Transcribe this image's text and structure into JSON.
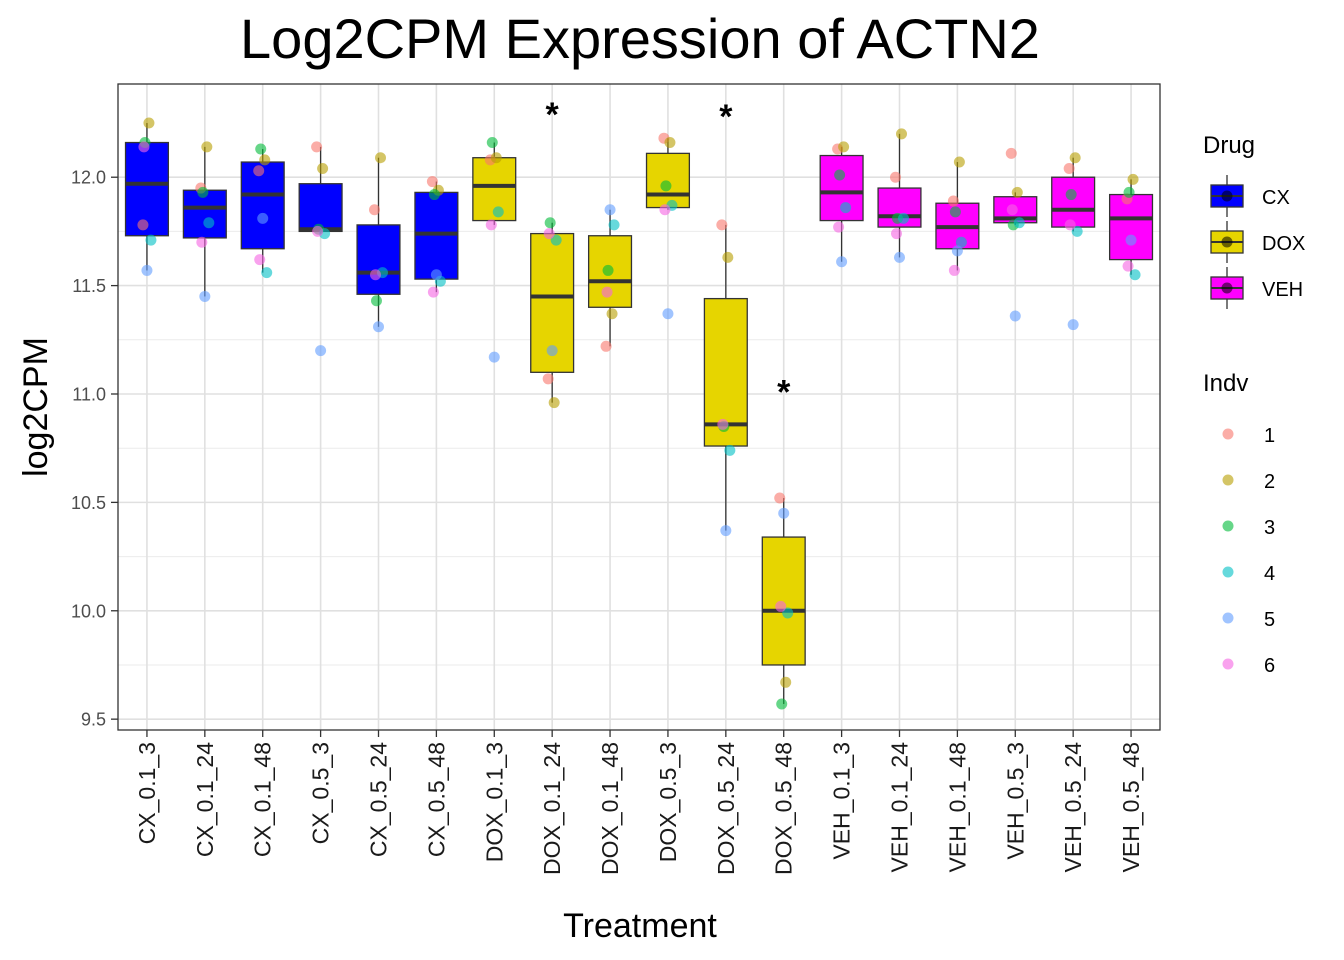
{
  "chart_data": {
    "type": "box",
    "title": "Log2CPM Expression of ACTN2",
    "xlabel": "Treatment",
    "ylabel": "log2CPM",
    "ylim": [
      9.45,
      12.43
    ],
    "yticks": [
      9.5,
      10.0,
      10.5,
      11.0,
      11.5,
      12.0
    ],
    "ytick_labels": [
      "9.5",
      "10.0",
      "10.5",
      "11.0",
      "11.5",
      "12.0"
    ],
    "categories": [
      "CX_0.1_3",
      "CX_0.1_24",
      "CX_0.1_48",
      "CX_0.5_3",
      "CX_0.5_24",
      "CX_0.5_48",
      "DOX_0.1_3",
      "DOX_0.1_24",
      "DOX_0.1_48",
      "DOX_0.5_3",
      "DOX_0.5_24",
      "DOX_0.5_48",
      "VEH_0.1_3",
      "VEH_0.1_24",
      "VEH_0.1_48",
      "VEH_0.5_3",
      "VEH_0.5_24",
      "VEH_0.5_48"
    ],
    "drug": [
      "CX",
      "CX",
      "CX",
      "CX",
      "CX",
      "CX",
      "DOX",
      "DOX",
      "DOX",
      "DOX",
      "DOX",
      "DOX",
      "VEH",
      "VEH",
      "VEH",
      "VEH",
      "VEH",
      "VEH"
    ],
    "boxes": [
      {
        "q1": 11.73,
        "median": 11.97,
        "q3": 12.16,
        "wlow": 11.57,
        "whigh": 12.25
      },
      {
        "q1": 11.72,
        "median": 11.86,
        "q3": 11.94,
        "wlow": 11.45,
        "whigh": 12.14
      },
      {
        "q1": 11.67,
        "median": 11.92,
        "q3": 12.07,
        "wlow": 11.56,
        "whigh": 12.13
      },
      {
        "q1": 11.75,
        "median": 11.76,
        "q3": 11.97,
        "wlow": 11.74,
        "whigh": 12.14
      },
      {
        "q1": 11.46,
        "median": 11.56,
        "q3": 11.78,
        "wlow": 11.31,
        "whigh": 12.09
      },
      {
        "q1": 11.53,
        "median": 11.74,
        "q3": 11.93,
        "wlow": 11.47,
        "whigh": 11.98
      },
      {
        "q1": 11.8,
        "median": 11.96,
        "q3": 12.09,
        "wlow": 11.78,
        "whigh": 12.16
      },
      {
        "q1": 11.1,
        "median": 11.45,
        "q3": 11.74,
        "wlow": 10.96,
        "whigh": 11.79
      },
      {
        "q1": 11.4,
        "median": 11.52,
        "q3": 11.73,
        "wlow": 11.22,
        "whigh": 11.85
      },
      {
        "q1": 11.86,
        "median": 11.92,
        "q3": 12.11,
        "wlow": 11.85,
        "whigh": 12.18
      },
      {
        "q1": 10.76,
        "median": 10.86,
        "q3": 11.44,
        "wlow": 10.37,
        "whigh": 11.78
      },
      {
        "q1": 9.75,
        "median": 10.0,
        "q3": 10.34,
        "wlow": 9.57,
        "whigh": 10.52
      },
      {
        "q1": 11.8,
        "median": 11.93,
        "q3": 12.1,
        "wlow": 11.61,
        "whigh": 12.14
      },
      {
        "q1": 11.77,
        "median": 11.82,
        "q3": 11.95,
        "wlow": 11.63,
        "whigh": 12.2
      },
      {
        "q1": 11.67,
        "median": 11.77,
        "q3": 11.88,
        "wlow": 11.57,
        "whigh": 12.07
      },
      {
        "q1": 11.79,
        "median": 11.81,
        "q3": 11.91,
        "wlow": 11.78,
        "whigh": 11.93
      },
      {
        "q1": 11.77,
        "median": 11.85,
        "q3": 12.0,
        "wlow": 11.75,
        "whigh": 12.09
      },
      {
        "q1": 11.62,
        "median": 11.81,
        "q3": 11.92,
        "wlow": 11.55,
        "whigh": 11.99
      }
    ],
    "points": [
      [
        {
          "indv": 1,
          "y": 11.78
        },
        {
          "indv": 2,
          "y": 12.25
        },
        {
          "indv": 3,
          "y": 12.16
        },
        {
          "indv": 4,
          "y": 11.71
        },
        {
          "indv": 5,
          "y": 11.57
        },
        {
          "indv": 6,
          "y": 12.14
        }
      ],
      [
        {
          "indv": 1,
          "y": 11.95
        },
        {
          "indv": 2,
          "y": 12.14
        },
        {
          "indv": 3,
          "y": 11.93
        },
        {
          "indv": 4,
          "y": 11.79
        },
        {
          "indv": 5,
          "y": 11.45
        },
        {
          "indv": 6,
          "y": 11.7
        }
      ],
      [
        {
          "indv": 1,
          "y": 12.03
        },
        {
          "indv": 2,
          "y": 12.08
        },
        {
          "indv": 3,
          "y": 12.13
        },
        {
          "indv": 4,
          "y": 11.56
        },
        {
          "indv": 5,
          "y": 11.81
        },
        {
          "indv": 6,
          "y": 11.62
        }
      ],
      [
        {
          "indv": 1,
          "y": 12.14
        },
        {
          "indv": 2,
          "y": 12.04
        },
        {
          "indv": 3,
          "y": 11.76
        },
        {
          "indv": 4,
          "y": 11.74
        },
        {
          "indv": 5,
          "y": 11.2
        },
        {
          "indv": 6,
          "y": 11.75
        }
      ],
      [
        {
          "indv": 1,
          "y": 11.85
        },
        {
          "indv": 2,
          "y": 12.09
        },
        {
          "indv": 3,
          "y": 11.43
        },
        {
          "indv": 4,
          "y": 11.56
        },
        {
          "indv": 5,
          "y": 11.31
        },
        {
          "indv": 6,
          "y": 11.55
        }
      ],
      [
        {
          "indv": 1,
          "y": 11.98
        },
        {
          "indv": 2,
          "y": 11.94
        },
        {
          "indv": 3,
          "y": 11.92
        },
        {
          "indv": 4,
          "y": 11.52
        },
        {
          "indv": 5,
          "y": 11.55
        },
        {
          "indv": 6,
          "y": 11.47
        }
      ],
      [
        {
          "indv": 1,
          "y": 12.08
        },
        {
          "indv": 2,
          "y": 12.09
        },
        {
          "indv": 3,
          "y": 12.16
        },
        {
          "indv": 4,
          "y": 11.84
        },
        {
          "indv": 5,
          "y": 11.17
        },
        {
          "indv": 6,
          "y": 11.78
        }
      ],
      [
        {
          "indv": 1,
          "y": 11.07
        },
        {
          "indv": 2,
          "y": 10.96
        },
        {
          "indv": 3,
          "y": 11.79
        },
        {
          "indv": 4,
          "y": 11.71
        },
        {
          "indv": 5,
          "y": 11.2
        },
        {
          "indv": 6,
          "y": 11.74
        }
      ],
      [
        {
          "indv": 1,
          "y": 11.22
        },
        {
          "indv": 2,
          "y": 11.37
        },
        {
          "indv": 3,
          "y": 11.57
        },
        {
          "indv": 4,
          "y": 11.78
        },
        {
          "indv": 5,
          "y": 11.85
        },
        {
          "indv": 6,
          "y": 11.47
        }
      ],
      [
        {
          "indv": 1,
          "y": 12.18
        },
        {
          "indv": 2,
          "y": 12.16
        },
        {
          "indv": 3,
          "y": 11.96
        },
        {
          "indv": 4,
          "y": 11.87
        },
        {
          "indv": 5,
          "y": 11.37
        },
        {
          "indv": 6,
          "y": 11.85
        }
      ],
      [
        {
          "indv": 1,
          "y": 11.78
        },
        {
          "indv": 2,
          "y": 11.63
        },
        {
          "indv": 3,
          "y": 10.85
        },
        {
          "indv": 4,
          "y": 10.74
        },
        {
          "indv": 5,
          "y": 10.37
        },
        {
          "indv": 6,
          "y": 10.86
        }
      ],
      [
        {
          "indv": 1,
          "y": 10.52
        },
        {
          "indv": 2,
          "y": 9.67
        },
        {
          "indv": 3,
          "y": 9.57
        },
        {
          "indv": 4,
          "y": 9.99
        },
        {
          "indv": 5,
          "y": 10.45
        },
        {
          "indv": 6,
          "y": 10.02
        }
      ],
      [
        {
          "indv": 1,
          "y": 12.13
        },
        {
          "indv": 2,
          "y": 12.14
        },
        {
          "indv": 3,
          "y": 12.01
        },
        {
          "indv": 4,
          "y": 11.86
        },
        {
          "indv": 5,
          "y": 11.61
        },
        {
          "indv": 6,
          "y": 11.77
        }
      ],
      [
        {
          "indv": 1,
          "y": 12.0
        },
        {
          "indv": 2,
          "y": 12.2
        },
        {
          "indv": 3,
          "y": 11.81
        },
        {
          "indv": 4,
          "y": 11.81
        },
        {
          "indv": 5,
          "y": 11.63
        },
        {
          "indv": 6,
          "y": 11.74
        }
      ],
      [
        {
          "indv": 1,
          "y": 11.89
        },
        {
          "indv": 2,
          "y": 12.07
        },
        {
          "indv": 3,
          "y": 11.84
        },
        {
          "indv": 4,
          "y": 11.7
        },
        {
          "indv": 5,
          "y": 11.66
        },
        {
          "indv": 6,
          "y": 11.57
        }
      ],
      [
        {
          "indv": 1,
          "y": 12.11
        },
        {
          "indv": 2,
          "y": 11.93
        },
        {
          "indv": 3,
          "y": 11.78
        },
        {
          "indv": 4,
          "y": 11.79
        },
        {
          "indv": 5,
          "y": 11.36
        },
        {
          "indv": 6,
          "y": 11.85
        }
      ],
      [
        {
          "indv": 1,
          "y": 12.04
        },
        {
          "indv": 2,
          "y": 12.09
        },
        {
          "indv": 3,
          "y": 11.92
        },
        {
          "indv": 4,
          "y": 11.75
        },
        {
          "indv": 5,
          "y": 11.32
        },
        {
          "indv": 6,
          "y": 11.78
        }
      ],
      [
        {
          "indv": 1,
          "y": 11.9
        },
        {
          "indv": 2,
          "y": 11.99
        },
        {
          "indv": 3,
          "y": 11.93
        },
        {
          "indv": 4,
          "y": 11.55
        },
        {
          "indv": 5,
          "y": 11.71
        },
        {
          "indv": 6,
          "y": 11.59
        }
      ]
    ],
    "annotations": [
      {
        "category": "DOX_0.1_24",
        "text": "*",
        "y": 12.31
      },
      {
        "category": "DOX_0.5_24",
        "text": "*",
        "y": 12.3
      },
      {
        "category": "DOX_0.5_48",
        "text": "*",
        "y": 11.03
      }
    ],
    "legend_drug": {
      "title": "Drug",
      "items": [
        {
          "label": "CX",
          "color": "#0000ff"
        },
        {
          "label": "DOX",
          "color": "#e6d500"
        },
        {
          "label": "VEH",
          "color": "#ff00ff"
        }
      ]
    },
    "legend_indv": {
      "title": "Indv",
      "items": [
        {
          "label": "1",
          "color": "#F8766D"
        },
        {
          "label": "2",
          "color": "#B79F00"
        },
        {
          "label": "3",
          "color": "#00BA38"
        },
        {
          "label": "4",
          "color": "#00BFC4"
        },
        {
          "label": "5",
          "color": "#619CFF"
        },
        {
          "label": "6",
          "color": "#F564E3"
        }
      ]
    },
    "jitter": [
      -4,
      2,
      -2,
      4,
      0,
      -3
    ],
    "grid": true,
    "legend_position": "right"
  }
}
